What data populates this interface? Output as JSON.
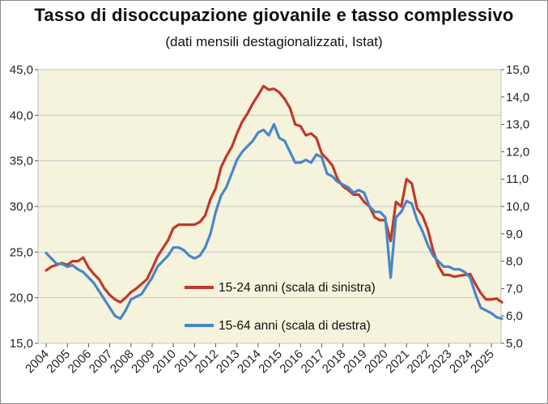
{
  "chart_data": {
    "type": "line",
    "title": "Tasso di disoccupazione giovanile e tasso complessivo",
    "subtitle": "(dati mensili destagionalizzati, Istat)",
    "x_categories": [
      "2004",
      "2005",
      "2006",
      "2007",
      "2008",
      "2009",
      "2010",
      "2011",
      "2012",
      "2013",
      "2014",
      "2015",
      "2016",
      "2017",
      "2018",
      "2019",
      "2020",
      "2021",
      "2022",
      "2023",
      "2024",
      "2025"
    ],
    "y_left": {
      "min": 15.0,
      "max": 45.0,
      "step": 5.0,
      "tick_labels": [
        "15,0",
        "20,0",
        "25,0",
        "30,0",
        "35,0",
        "40,0",
        "45,0"
      ]
    },
    "y_right": {
      "min": 5.0,
      "max": 15.0,
      "step": 1.0,
      "tick_labels": [
        "5,0",
        "6,0",
        "7,0",
        "8,0",
        "9,0",
        "10,0",
        "11,0",
        "12,0",
        "13,0",
        "14,0",
        "15,0"
      ]
    },
    "grid": "horizontal",
    "plot_background": "#f5f3dc",
    "legend_position": "bottom-right",
    "series": [
      {
        "name": "15-24 anni (scala di sinistra)",
        "axis": "left",
        "color": "#c0392b",
        "points": [
          [
            "2004-01",
            23.0
          ],
          [
            "2004-04",
            23.4
          ],
          [
            "2004-07",
            23.6
          ],
          [
            "2004-10",
            23.8
          ],
          [
            "2005-01",
            23.6
          ],
          [
            "2005-04",
            24.0
          ],
          [
            "2005-07",
            24.0
          ],
          [
            "2005-10",
            24.4
          ],
          [
            "2006-01",
            23.3
          ],
          [
            "2006-04",
            22.6
          ],
          [
            "2006-07",
            22.0
          ],
          [
            "2006-10",
            21.0
          ],
          [
            "2007-01",
            20.3
          ],
          [
            "2007-04",
            19.8
          ],
          [
            "2007-07",
            19.5
          ],
          [
            "2007-10",
            20.0
          ],
          [
            "2008-01",
            20.6
          ],
          [
            "2008-04",
            21.0
          ],
          [
            "2008-07",
            21.5
          ],
          [
            "2008-10",
            22.0
          ],
          [
            "2009-01",
            23.2
          ],
          [
            "2009-04",
            24.5
          ],
          [
            "2009-07",
            25.4
          ],
          [
            "2009-10",
            26.3
          ],
          [
            "2010-01",
            27.6
          ],
          [
            "2010-04",
            28.0
          ],
          [
            "2010-07",
            28.0
          ],
          [
            "2010-10",
            28.0
          ],
          [
            "2011-01",
            28.0
          ],
          [
            "2011-04",
            28.3
          ],
          [
            "2011-07",
            29.0
          ],
          [
            "2011-10",
            30.8
          ],
          [
            "2012-01",
            32.0
          ],
          [
            "2012-04",
            34.3
          ],
          [
            "2012-07",
            35.5
          ],
          [
            "2012-10",
            36.5
          ],
          [
            "2013-01",
            38.0
          ],
          [
            "2013-04",
            39.3
          ],
          [
            "2013-07",
            40.2
          ],
          [
            "2013-10",
            41.3
          ],
          [
            "2014-01",
            42.2
          ],
          [
            "2014-04",
            43.2
          ],
          [
            "2014-07",
            42.8
          ],
          [
            "2014-10",
            42.9
          ],
          [
            "2015-01",
            42.5
          ],
          [
            "2015-04",
            41.8
          ],
          [
            "2015-07",
            40.8
          ],
          [
            "2015-10",
            39.0
          ],
          [
            "2016-01",
            38.8
          ],
          [
            "2016-04",
            37.8
          ],
          [
            "2016-07",
            38.0
          ],
          [
            "2016-10",
            37.5
          ],
          [
            "2017-01",
            35.8
          ],
          [
            "2017-04",
            35.2
          ],
          [
            "2017-07",
            34.5
          ],
          [
            "2017-10",
            33.0
          ],
          [
            "2018-01",
            32.2
          ],
          [
            "2018-04",
            31.8
          ],
          [
            "2018-07",
            31.3
          ],
          [
            "2018-10",
            31.3
          ],
          [
            "2019-01",
            30.5
          ],
          [
            "2019-04",
            30.0
          ],
          [
            "2019-07",
            28.8
          ],
          [
            "2019-10",
            28.5
          ],
          [
            "2020-01",
            28.5
          ],
          [
            "2020-04",
            26.2
          ],
          [
            "2020-07",
            30.5
          ],
          [
            "2020-10",
            30.0
          ],
          [
            "2021-01",
            33.0
          ],
          [
            "2021-04",
            32.5
          ],
          [
            "2021-07",
            29.8
          ],
          [
            "2021-10",
            29.0
          ],
          [
            "2022-01",
            27.5
          ],
          [
            "2022-04",
            25.2
          ],
          [
            "2022-07",
            23.5
          ],
          [
            "2022-10",
            22.5
          ],
          [
            "2023-01",
            22.5
          ],
          [
            "2023-04",
            22.3
          ],
          [
            "2023-07",
            22.4
          ],
          [
            "2023-10",
            22.5
          ],
          [
            "2024-01",
            22.6
          ],
          [
            "2024-04",
            21.5
          ],
          [
            "2024-07",
            20.5
          ],
          [
            "2024-10",
            19.8
          ],
          [
            "2025-01",
            19.8
          ],
          [
            "2025-04",
            19.9
          ],
          [
            "2025-07",
            19.5
          ]
        ]
      },
      {
        "name": "15-64 anni (scala di destra)",
        "axis": "right",
        "color": "#4a86c8",
        "points": [
          [
            "2004-01",
            8.3
          ],
          [
            "2004-04",
            8.1
          ],
          [
            "2004-07",
            7.9
          ],
          [
            "2004-10",
            7.9
          ],
          [
            "2005-01",
            7.8
          ],
          [
            "2005-04",
            7.85
          ],
          [
            "2005-07",
            7.7
          ],
          [
            "2005-10",
            7.6
          ],
          [
            "2006-01",
            7.4
          ],
          [
            "2006-04",
            7.2
          ],
          [
            "2006-07",
            6.9
          ],
          [
            "2006-10",
            6.6
          ],
          [
            "2007-01",
            6.3
          ],
          [
            "2007-04",
            6.0
          ],
          [
            "2007-07",
            5.9
          ],
          [
            "2007-10",
            6.2
          ],
          [
            "2008-01",
            6.6
          ],
          [
            "2008-04",
            6.7
          ],
          [
            "2008-07",
            6.8
          ],
          [
            "2008-10",
            7.1
          ],
          [
            "2009-01",
            7.4
          ],
          [
            "2009-04",
            7.8
          ],
          [
            "2009-07",
            8.0
          ],
          [
            "2009-10",
            8.2
          ],
          [
            "2010-01",
            8.5
          ],
          [
            "2010-04",
            8.5
          ],
          [
            "2010-07",
            8.4
          ],
          [
            "2010-10",
            8.2
          ],
          [
            "2011-01",
            8.1
          ],
          [
            "2011-04",
            8.2
          ],
          [
            "2011-07",
            8.5
          ],
          [
            "2011-10",
            9.0
          ],
          [
            "2012-01",
            9.8
          ],
          [
            "2012-04",
            10.4
          ],
          [
            "2012-07",
            10.7
          ],
          [
            "2012-10",
            11.2
          ],
          [
            "2013-01",
            11.7
          ],
          [
            "2013-04",
            12.0
          ],
          [
            "2013-07",
            12.2
          ],
          [
            "2013-10",
            12.4
          ],
          [
            "2014-01",
            12.7
          ],
          [
            "2014-04",
            12.8
          ],
          [
            "2014-07",
            12.6
          ],
          [
            "2014-10",
            13.0
          ],
          [
            "2015-01",
            12.5
          ],
          [
            "2015-04",
            12.4
          ],
          [
            "2015-07",
            12.0
          ],
          [
            "2015-10",
            11.6
          ],
          [
            "2016-01",
            11.6
          ],
          [
            "2016-04",
            11.7
          ],
          [
            "2016-07",
            11.6
          ],
          [
            "2016-10",
            11.9
          ],
          [
            "2017-01",
            11.8
          ],
          [
            "2017-04",
            11.2
          ],
          [
            "2017-07",
            11.1
          ],
          [
            "2017-10",
            10.9
          ],
          [
            "2018-01",
            10.8
          ],
          [
            "2018-04",
            10.7
          ],
          [
            "2018-07",
            10.5
          ],
          [
            "2018-10",
            10.6
          ],
          [
            "2019-01",
            10.5
          ],
          [
            "2019-04",
            10.0
          ],
          [
            "2019-07",
            9.8
          ],
          [
            "2019-10",
            9.8
          ],
          [
            "2020-01",
            9.6
          ],
          [
            "2020-04",
            7.4
          ],
          [
            "2020-07",
            9.6
          ],
          [
            "2020-10",
            9.8
          ],
          [
            "2021-01",
            10.2
          ],
          [
            "2021-04",
            10.1
          ],
          [
            "2021-07",
            9.5
          ],
          [
            "2021-10",
            9.1
          ],
          [
            "2022-01",
            8.6
          ],
          [
            "2022-04",
            8.2
          ],
          [
            "2022-07",
            8.0
          ],
          [
            "2022-10",
            7.8
          ],
          [
            "2023-01",
            7.8
          ],
          [
            "2023-04",
            7.7
          ],
          [
            "2023-07",
            7.7
          ],
          [
            "2023-10",
            7.6
          ],
          [
            "2024-01",
            7.4
          ],
          [
            "2024-04",
            6.8
          ],
          [
            "2024-07",
            6.3
          ],
          [
            "2024-10",
            6.2
          ],
          [
            "2025-01",
            6.1
          ],
          [
            "2025-04",
            5.95
          ],
          [
            "2025-07",
            5.9
          ]
        ]
      }
    ]
  }
}
